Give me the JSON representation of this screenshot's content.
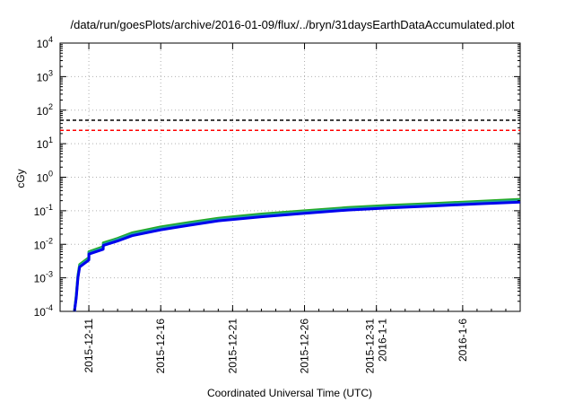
{
  "chart_data": {
    "type": "line",
    "title": "/data/run/goesPlots/archive/2016-01-09/flux/../bryn/31daysEarthDataAccumulated.plot",
    "xlabel": "Coordinated Universal Time (UTC)",
    "ylabel": "cGy",
    "yscale": "log",
    "ylim": [
      0.0001,
      10000
    ],
    "xlim": [
      "2015-12-09",
      "2016-01-10"
    ],
    "grid": true,
    "y_ticks": [
      {
        "base": "10",
        "exp": "-4"
      },
      {
        "base": "10",
        "exp": "-3"
      },
      {
        "base": "10",
        "exp": "-2"
      },
      {
        "base": "10",
        "exp": "-1"
      },
      {
        "base": "10",
        "exp": "0"
      },
      {
        "base": "10",
        "exp": "1"
      },
      {
        "base": "10",
        "exp": "2"
      },
      {
        "base": "10",
        "exp": "3"
      },
      {
        "base": "10",
        "exp": "4"
      }
    ],
    "x_ticks": [
      {
        "date": "2015-12-11",
        "lines": [
          "2015-12-11"
        ]
      },
      {
        "date": "2015-12-16",
        "lines": [
          "2015-12-16"
        ]
      },
      {
        "date": "2015-12-21",
        "lines": [
          "2015-12-21"
        ]
      },
      {
        "date": "2015-12-26",
        "lines": [
          "2015-12-26"
        ]
      },
      {
        "date": "2015-12-31",
        "lines": [
          "2015-12-31",
          "2016-1-1"
        ]
      },
      {
        "date": "2016-01-06",
        "lines": [
          "2016-1-6"
        ]
      }
    ],
    "thresholds": [
      {
        "value": 50,
        "color": "#000000",
        "style": "dashed"
      },
      {
        "value": 25,
        "color": "#ff0000",
        "style": "dashed"
      }
    ],
    "series": [
      {
        "color": "#22aa22",
        "x": [
          "2015-12-10",
          "2015-12-10",
          "2015-12-10",
          "2015-12-10",
          "2015-12-11",
          "2015-12-11",
          "2015-12-12",
          "2015-12-12",
          "2015-12-13",
          "2015-12-14",
          "2015-12-16",
          "2015-12-18",
          "2015-12-20",
          "2015-12-23",
          "2015-12-26",
          "2015-12-29",
          "2016-01-01",
          "2016-01-04",
          "2016-01-07",
          "2016-01-10"
        ],
        "y": [
          0.0001,
          0.0003,
          0.0012,
          0.0025,
          0.004,
          0.006,
          0.0085,
          0.011,
          0.015,
          0.022,
          0.033,
          0.045,
          0.06,
          0.08,
          0.1,
          0.125,
          0.145,
          0.165,
          0.19,
          0.22
        ]
      },
      {
        "color": "#1f9f9f",
        "x": [
          "2015-12-10",
          "2015-12-10",
          "2015-12-10",
          "2015-12-10",
          "2015-12-11",
          "2015-12-11",
          "2015-12-12",
          "2015-12-12",
          "2015-12-13",
          "2015-12-14",
          "2015-12-16",
          "2015-12-18",
          "2015-12-20",
          "2015-12-23",
          "2015-12-26",
          "2015-12-29",
          "2016-01-01",
          "2016-01-04",
          "2016-01-07",
          "2016-01-10"
        ],
        "y": [
          0.0001,
          0.00028,
          0.0011,
          0.0023,
          0.0037,
          0.0056,
          0.0078,
          0.01,
          0.014,
          0.02,
          0.03,
          0.041,
          0.055,
          0.073,
          0.092,
          0.115,
          0.133,
          0.152,
          0.175,
          0.2
        ]
      },
      {
        "color": "#0000ee",
        "x": [
          "2015-12-10",
          "2015-12-10",
          "2015-12-10",
          "2015-12-10",
          "2015-12-11",
          "2015-12-11",
          "2015-12-12",
          "2015-12-12",
          "2015-12-13",
          "2015-12-14",
          "2015-12-16",
          "2015-12-18",
          "2015-12-20",
          "2015-12-23",
          "2015-12-26",
          "2015-12-29",
          "2016-01-01",
          "2016-01-04",
          "2016-01-07",
          "2016-01-10"
        ],
        "y": [
          0.0001,
          0.00025,
          0.001,
          0.0021,
          0.0034,
          0.0051,
          0.0071,
          0.0092,
          0.0125,
          0.018,
          0.027,
          0.037,
          0.05,
          0.066,
          0.084,
          0.105,
          0.122,
          0.139,
          0.16,
          0.18
        ]
      }
    ]
  }
}
